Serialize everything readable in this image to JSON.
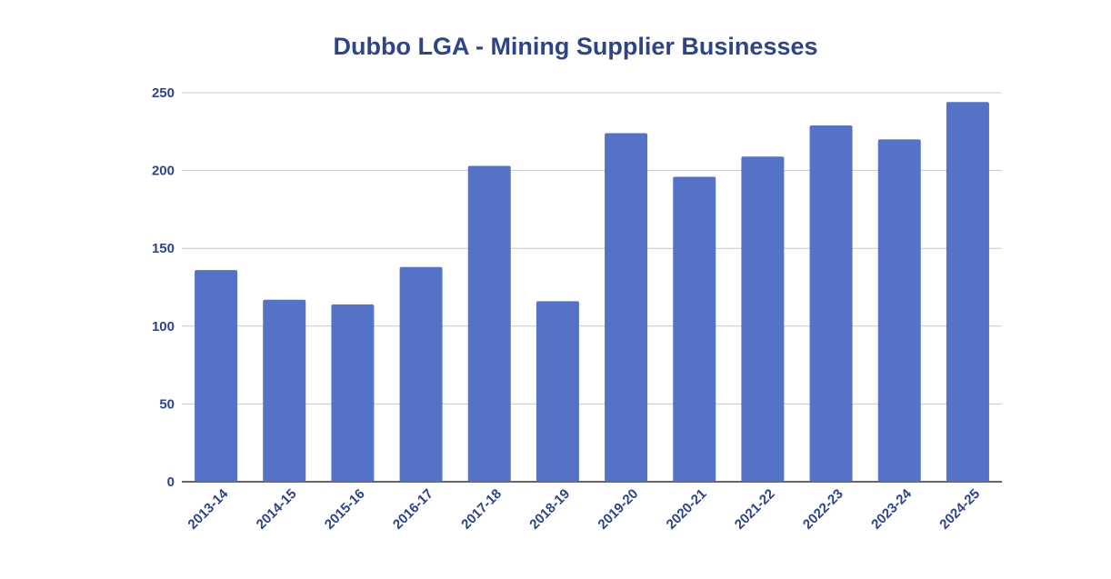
{
  "chart_data": {
    "type": "bar",
    "title": "Dubbo LGA - Mining Supplier Businesses",
    "xlabel": "",
    "ylabel": "",
    "categories": [
      "2013-14",
      "2014-15",
      "2015-16",
      "2016-17",
      "2017-18",
      "2018-19",
      "2019-20",
      "2020-21",
      "2021-22",
      "2022-23",
      "2023-24",
      "2024-25"
    ],
    "values": [
      136,
      117,
      114,
      138,
      203,
      116,
      224,
      196,
      209,
      229,
      220,
      244
    ],
    "ylim": [
      0,
      250
    ],
    "yticks": [
      "0",
      "50",
      "100",
      "150",
      "200",
      "250"
    ],
    "grid": true,
    "legend": "none",
    "bar_color": "#5473c6",
    "text_color": "#2f4487",
    "grid_color": "#c8c8c8",
    "axis_color": "#333333"
  }
}
